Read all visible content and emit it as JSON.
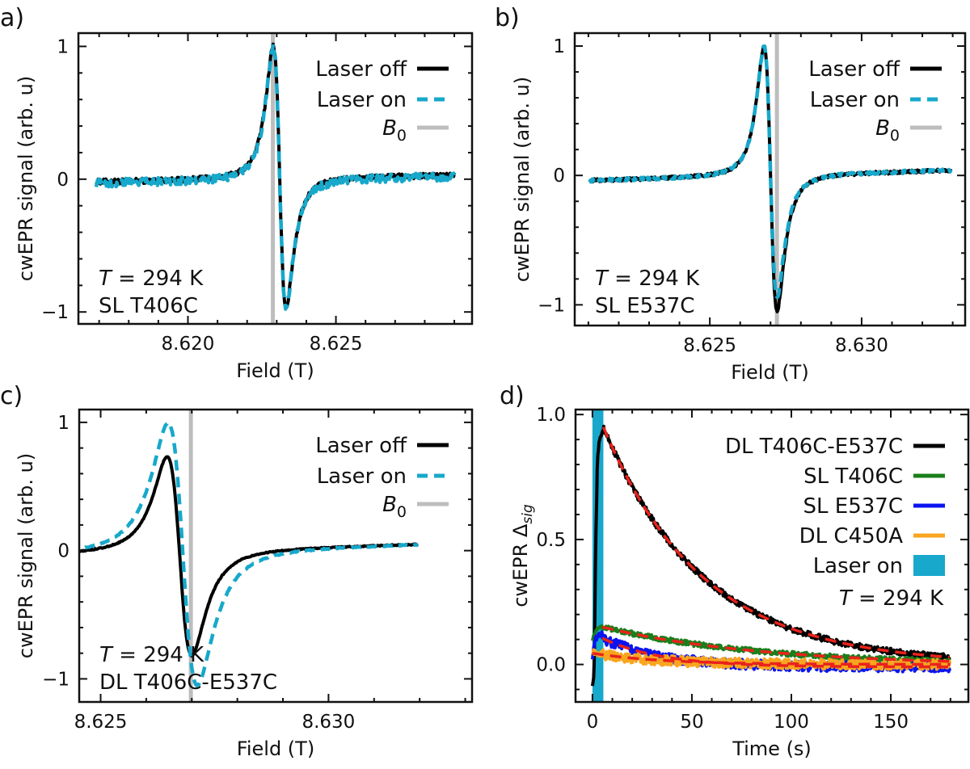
{
  "chart_data": [
    {
      "panel_label": "a)",
      "type": "line",
      "xlabel": "Field (T)",
      "ylabel": "cwEPR signal (arb. u)",
      "xlim": [
        8.6163,
        8.6296
      ],
      "ylim": [
        -1.09,
        1.1
      ],
      "xticks": [
        8.62,
        8.625
      ],
      "xtick_labels": [
        "8.620",
        "8.625"
      ],
      "xminor": 0.001,
      "yticks": [
        -1,
        0,
        1
      ],
      "ytick_labels": [
        "−1",
        "0",
        "1"
      ],
      "yminor": 0.2,
      "x_range": [
        8.6169,
        8.629
      ],
      "series": [
        {
          "name": "Laser off",
          "color": "#000000",
          "style": "solid",
          "center": 8.6231,
          "peak_to_peak_width": 0.00044,
          "pos_amplitude": 1.0,
          "neg_amplitude": -0.97,
          "baseline_start": -0.02,
          "baseline_end": 0.03,
          "noise": 0.02
        },
        {
          "name": "Laser on",
          "color": "#17a8cb",
          "style": "dashed",
          "center": 8.6231,
          "peak_to_peak_width": 0.00044,
          "pos_amplitude": 1.0,
          "neg_amplitude": -0.97,
          "baseline_start": -0.03,
          "baseline_end": 0.02,
          "noise": 0.03
        }
      ],
      "b0": {
        "symbol": "B",
        "sub": "0",
        "field": 8.62287,
        "color": "#bdbdbd"
      },
      "annotation": {
        "temp_symbol": "T",
        "temp_value": " = 294 K",
        "sample": "SL T406C"
      }
    },
    {
      "panel_label": "b)",
      "type": "line",
      "xlabel": "Field (T)",
      "ylabel": "cwEPR signal (arb. u)",
      "xlim": [
        8.62055,
        8.63341
      ],
      "ylim": [
        -1.16,
        1.1
      ],
      "xticks": [
        8.625,
        8.63
      ],
      "xtick_labels": [
        "8.625",
        "8.630"
      ],
      "xminor": 0.001,
      "yticks": [
        -1,
        0,
        1
      ],
      "ytick_labels": [
        "−1",
        "0",
        "1"
      ],
      "yminor": 0.2,
      "x_range": [
        8.62104,
        8.63294
      ],
      "series": [
        {
          "name": "Laser off",
          "color": "#000000",
          "style": "solid",
          "center": 8.627,
          "peak_to_peak_width": 0.00043,
          "pos_amplitude": 1.0,
          "neg_amplitude": -1.05,
          "baseline_start": -0.04,
          "baseline_end": 0.04,
          "noise": 0.012
        },
        {
          "name": "Laser on",
          "color": "#17a8cb",
          "style": "dashed",
          "center": 8.627,
          "peak_to_peak_width": 0.00043,
          "pos_amplitude": 1.0,
          "neg_amplitude": -0.95,
          "baseline_start": -0.04,
          "baseline_end": 0.04,
          "noise": 0.012
        }
      ],
      "b0": {
        "symbol": "B",
        "sub": "0",
        "field": 8.62721,
        "color": "#bdbdbd"
      },
      "annotation": {
        "temp_symbol": "T",
        "temp_value": " = 294 K",
        "sample": "SL E537C"
      }
    },
    {
      "panel_label": "c)",
      "type": "line",
      "xlabel": "Field (T)",
      "ylabel": "cwEPR signal (arb. u)",
      "xlim": [
        8.62453,
        8.63315
      ],
      "ylim": [
        -1.18,
        1.1
      ],
      "xticks": [
        8.625,
        8.63
      ],
      "xtick_labels": [
        "8.625",
        "8.630"
      ],
      "xminor": 0.001,
      "yticks": [
        -1,
        0,
        1
      ],
      "ytick_labels": [
        "−1",
        "0",
        "1"
      ],
      "yminor": 0.2,
      "x_range": [
        8.62196,
        8.63196
      ],
      "series": [
        {
          "name": "Laser off",
          "color": "#000000",
          "style": "solid",
          "center": 8.62673,
          "peak_to_peak_width": 0.00054,
          "pos_amplitude": 0.74,
          "neg_amplitude": -0.82,
          "baseline_start": -0.05,
          "baseline_end": 0.05,
          "noise": 0.004
        },
        {
          "name": "Laser on",
          "color": "#17a8cb",
          "style": "dashed",
          "center": 8.6268,
          "peak_to_peak_width": 0.00064,
          "pos_amplitude": 1.0,
          "neg_amplitude": -1.05,
          "baseline_start": -0.05,
          "baseline_end": 0.05,
          "noise": 0.004
        }
      ],
      "b0": {
        "symbol": "B",
        "sub": "0",
        "field": 8.62698,
        "color": "#bdbdbd"
      },
      "annotation": {
        "temp_symbol": "T",
        "temp_value": " = 294 K",
        "sample": "DL T406C-E537C"
      }
    },
    {
      "panel_label": "d)",
      "type": "line",
      "xlabel": "Time (s)",
      "ylabel": {
        "text": "cwEPR ",
        "symbol": "Δ",
        "sub": "sig"
      },
      "xlim": [
        -8.5,
        189
      ],
      "ylim": [
        -0.15,
        1.02
      ],
      "xticks": [
        0,
        50,
        100,
        150
      ],
      "xtick_labels": [
        "0",
        "50",
        "100",
        "150"
      ],
      "xminor": 10,
      "yticks": [
        0,
        0.5,
        1.0
      ],
      "ytick_labels": [
        "0.0",
        "0.5",
        "1.0"
      ],
      "yminor": 0.1,
      "laser_on": {
        "name": "Laser on",
        "start": 0,
        "end": 5.5,
        "color": "#17a8cb"
      },
      "fit_color": "#e8231c",
      "t_end": 180,
      "series": [
        {
          "name": "DL T406C-E537C",
          "color": "#000000",
          "rise": [
            [
              0,
              -0.08
            ],
            [
              0.8,
              -0.05
            ],
            [
              1.6,
              0.45
            ],
            [
              2.5,
              0.82
            ],
            [
              3.5,
              0.9
            ],
            [
              5.5,
              0.94
            ]
          ],
          "fit": {
            "amplitude": 0.95,
            "t0": 5.5,
            "tau": 50,
            "offset": 0.0
          },
          "noise": 0.012
        },
        {
          "name": "SL T406C",
          "color": "#1a7f1a",
          "rise": [
            [
              0,
              0.1
            ],
            [
              2,
              0.14
            ],
            [
              5,
              0.16
            ]
          ],
          "fit": {
            "amplitude": 0.155,
            "t0": 5,
            "tau": 80,
            "offset": -0.005
          },
          "noise": 0.01
        },
        {
          "name": "SL E537C",
          "color": "#0a14f0",
          "rise": [
            [
              0,
              0.03
            ],
            [
              1.5,
              0.1
            ],
            [
              5,
              0.13
            ]
          ],
          "fit": {
            "amplitude": 0.115,
            "t0": 5,
            "tau": 30,
            "offset": -0.01
          },
          "noise": 0.02
        },
        {
          "name": "DL C450A",
          "color": "#f9a51f",
          "rise": [
            [
              0,
              0.05
            ],
            [
              5,
              0.04
            ]
          ],
          "fit": {
            "amplitude": 0.045,
            "t0": 0,
            "tau": 35,
            "offset": 0.0
          },
          "noise": 0.02
        }
      ],
      "annotation": {
        "temp_symbol": "T",
        "temp_value": " = 294 K"
      }
    }
  ]
}
